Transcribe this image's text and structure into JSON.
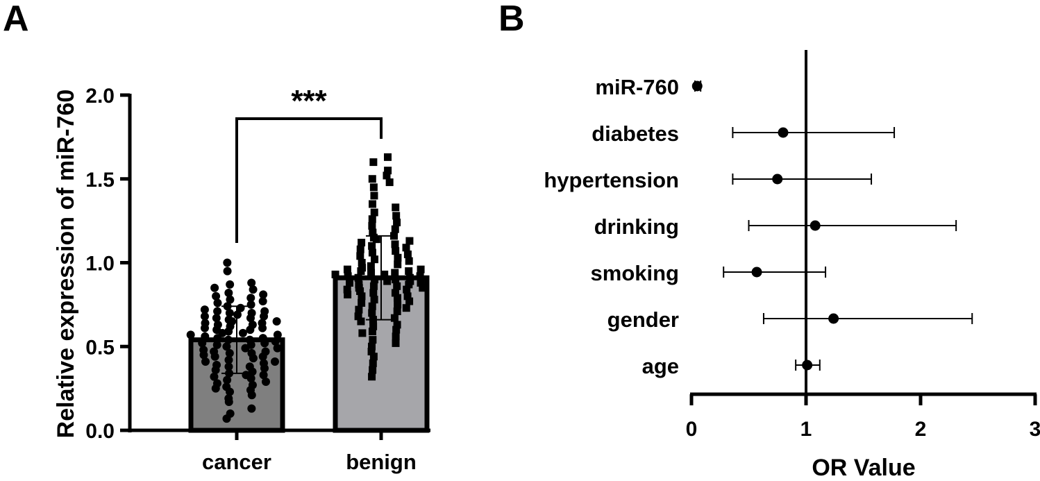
{
  "chart_data": [
    {
      "panel": "A",
      "type": "bar",
      "ylabel": "Relative expression of miR-760",
      "ylim": [
        0,
        2.0
      ],
      "yticks": [
        "0.0",
        "0.5",
        "1.0",
        "1.5",
        "2.0"
      ],
      "categories": [
        "cancer",
        "benign"
      ],
      "values": [
        0.54,
        0.91
      ],
      "sd": [
        0.2,
        0.25
      ],
      "bar_colors": [
        "#7f7f7f",
        "#a6a6aa"
      ],
      "significance": "***",
      "points": [
        [
          0.07,
          0.1,
          0.13,
          0.17,
          0.19,
          0.21,
          0.23,
          0.24,
          0.25,
          0.26,
          0.27,
          0.28,
          0.29,
          0.3,
          0.31,
          0.32,
          0.33,
          0.33,
          0.34,
          0.35,
          0.36,
          0.37,
          0.38,
          0.38,
          0.39,
          0.4,
          0.41,
          0.41,
          0.42,
          0.43,
          0.44,
          0.44,
          0.45,
          0.46,
          0.46,
          0.47,
          0.47,
          0.48,
          0.49,
          0.49,
          0.5,
          0.51,
          0.51,
          0.52,
          0.52,
          0.53,
          0.54,
          0.54,
          0.55,
          0.55,
          0.56,
          0.57,
          0.57,
          0.58,
          0.58,
          0.59,
          0.6,
          0.6,
          0.61,
          0.61,
          0.62,
          0.63,
          0.63,
          0.64,
          0.64,
          0.65,
          0.65,
          0.66,
          0.67,
          0.67,
          0.68,
          0.68,
          0.69,
          0.7,
          0.7,
          0.71,
          0.71,
          0.72,
          0.73,
          0.74,
          0.75,
          0.76,
          0.77,
          0.78,
          0.79,
          0.8,
          0.81,
          0.82,
          0.84,
          0.85,
          0.87,
          0.88,
          0.95,
          1.0
        ],
        [
          0.32,
          0.36,
          0.4,
          0.44,
          0.47,
          0.5,
          0.52,
          0.54,
          0.56,
          0.58,
          0.59,
          0.6,
          0.62,
          0.63,
          0.65,
          0.66,
          0.67,
          0.68,
          0.7,
          0.71,
          0.72,
          0.73,
          0.74,
          0.75,
          0.76,
          0.77,
          0.78,
          0.79,
          0.8,
          0.8,
          0.81,
          0.82,
          0.82,
          0.83,
          0.84,
          0.84,
          0.85,
          0.85,
          0.86,
          0.86,
          0.87,
          0.87,
          0.88,
          0.88,
          0.89,
          0.89,
          0.9,
          0.9,
          0.91,
          0.91,
          0.92,
          0.92,
          0.93,
          0.93,
          0.94,
          0.94,
          0.95,
          0.95,
          0.96,
          0.96,
          0.97,
          0.98,
          0.99,
          1.0,
          1.01,
          1.02,
          1.03,
          1.04,
          1.05,
          1.06,
          1.07,
          1.08,
          1.09,
          1.1,
          1.11,
          1.12,
          1.13,
          1.14,
          1.15,
          1.16,
          1.18,
          1.2,
          1.22,
          1.24,
          1.26,
          1.28,
          1.3,
          1.33,
          1.35,
          1.4,
          1.45,
          1.48,
          1.5,
          1.52,
          1.55,
          1.6,
          1.63
        ]
      ]
    },
    {
      "panel": "B",
      "type": "forest",
      "xlabel": "OR Value",
      "xlim": [
        0,
        3
      ],
      "xticks": [
        "0",
        "1",
        "2",
        "3"
      ],
      "reference_line": 1,
      "rows": [
        {
          "label": "miR-760",
          "or": 0.05,
          "lo": 0.03,
          "hi": 0.08
        },
        {
          "label": "diabetes",
          "or": 0.8,
          "lo": 0.36,
          "hi": 1.77
        },
        {
          "label": "hypertension",
          "or": 0.75,
          "lo": 0.36,
          "hi": 1.57
        },
        {
          "label": "drinking",
          "or": 1.08,
          "lo": 0.5,
          "hi": 2.31
        },
        {
          "label": "smoking",
          "or": 0.57,
          "lo": 0.28,
          "hi": 1.17
        },
        {
          "label": "gender",
          "or": 1.24,
          "lo": 0.63,
          "hi": 2.45
        },
        {
          "label": "age",
          "or": 1.01,
          "lo": 0.91,
          "hi": 1.12
        }
      ]
    }
  ],
  "panel_labels": [
    "A",
    "B"
  ]
}
